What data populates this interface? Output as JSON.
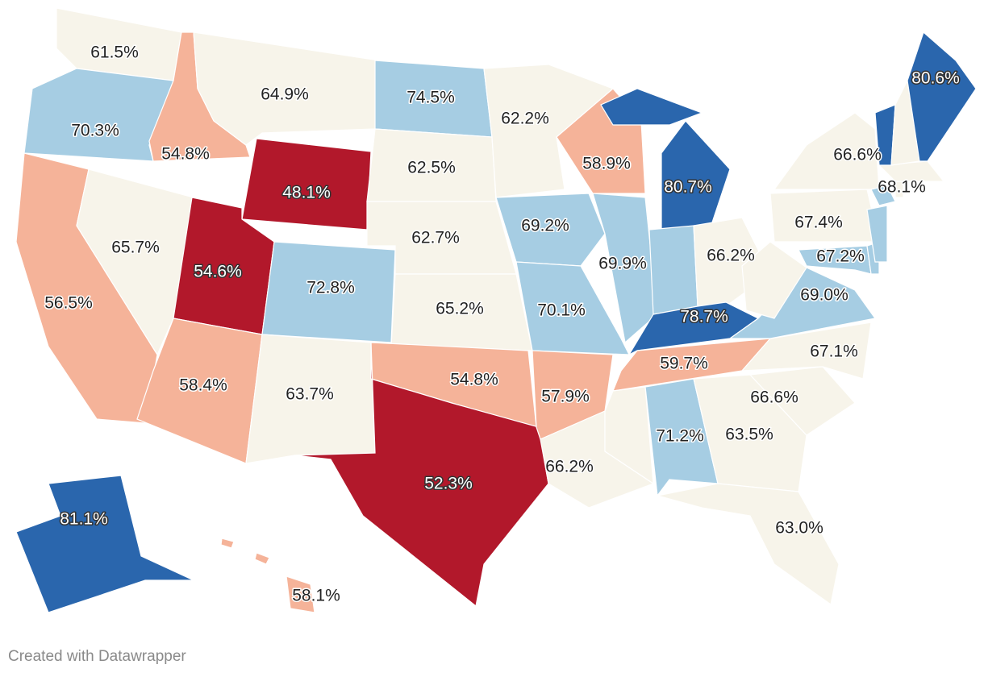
{
  "map_data": {
    "footer": "Created with Datawrapper",
    "regions": [
      {
        "value": 61.5,
        "label": "61.5%",
        "color": "#f7f4ea"
      },
      {
        "value": 70.3,
        "label": "70.3%",
        "color": "#a6cde3"
      },
      {
        "value": 56.5,
        "label": "56.5%",
        "color": "#f5b399"
      },
      {
        "value": 65.7,
        "label": "65.7%",
        "color": "#f7f4ea"
      },
      {
        "value": 54.8,
        "label": "54.8%",
        "color": "#f5b399"
      },
      {
        "value": 64.9,
        "label": "64.9%",
        "color": "#f7f4ea"
      },
      {
        "value": 48.1,
        "label": "48.1%",
        "color": "#b2182b"
      },
      {
        "value": 54.6,
        "label": "54.6%",
        "color": "#b2182b"
      },
      {
        "value": 58.4,
        "label": "58.4%",
        "color": "#f5b399"
      },
      {
        "value": 72.8,
        "label": "72.8%",
        "color": "#a6cde3"
      },
      {
        "value": 63.7,
        "label": "63.7%",
        "color": "#f7f4ea"
      },
      {
        "value": 74.5,
        "label": "74.5%",
        "color": "#a6cde3"
      },
      {
        "value": 62.5,
        "label": "62.5%",
        "color": "#f7f4ea"
      },
      {
        "value": 62.7,
        "label": "62.7%",
        "color": "#f7f4ea"
      },
      {
        "value": 65.2,
        "label": "65.2%",
        "color": "#f7f4ea"
      },
      {
        "value": 54.8,
        "label": "54.8%",
        "color": "#f5b399"
      },
      {
        "value": 52.3,
        "label": "52.3%",
        "color": "#b2182b"
      },
      {
        "value": 62.2,
        "label": "62.2%",
        "color": "#f7f4ea"
      },
      {
        "value": 69.2,
        "label": "69.2%",
        "color": "#a6cde3"
      },
      {
        "value": 70.1,
        "label": "70.1%",
        "color": "#a6cde3"
      },
      {
        "value": 57.9,
        "label": "57.9%",
        "color": "#f5b399"
      },
      {
        "value": 66.2,
        "label": "66.2%",
        "color": "#f7f4ea"
      },
      {
        "value": 58.9,
        "label": "58.9%",
        "color": "#f5b399"
      },
      {
        "value": 69.9,
        "label": "69.9%",
        "color": "#a6cde3"
      },
      {
        "value": 80.7,
        "label": "80.7%",
        "color": "#2a66ad"
      },
      {
        "value": null,
        "label": null,
        "color": "#a6cde3"
      },
      {
        "value": 66.2,
        "label": "66.2%",
        "color": "#f7f4ea"
      },
      {
        "value": 78.7,
        "label": "78.7%",
        "color": "#2a66ad"
      },
      {
        "value": 59.7,
        "label": "59.7%",
        "color": "#f5b399"
      },
      {
        "value": null,
        "label": null,
        "color": "#f7f4ea"
      },
      {
        "value": 71.2,
        "label": "71.2%",
        "color": "#a6cde3"
      },
      {
        "value": 63.5,
        "label": "63.5%",
        "color": "#f7f4ea"
      },
      {
        "value": 63.0,
        "label": "63.0%",
        "color": "#f7f4ea"
      },
      {
        "value": 66.6,
        "label": "66.6%",
        "color": "#f7f4ea"
      },
      {
        "value": 67.1,
        "label": "67.1%",
        "color": "#f7f4ea"
      },
      {
        "value": 69.0,
        "label": "69.0%",
        "color": "#a6cde3"
      },
      {
        "value": null,
        "label": null,
        "color": "#f7f4ea"
      },
      {
        "value": 67.4,
        "label": "67.4%",
        "color": "#f7f4ea"
      },
      {
        "value": 67.2,
        "label": "67.2%",
        "color": "#a6cde3"
      },
      {
        "value": null,
        "label": null,
        "color": "#a6cde3"
      },
      {
        "value": null,
        "label": null,
        "color": "#a6cde3"
      },
      {
        "value": 66.6,
        "label": "66.6%",
        "color": "#f7f4ea"
      },
      {
        "value": 68.1,
        "label": "68.1%",
        "color": "#a6cde3"
      },
      {
        "value": null,
        "label": null,
        "color": "#f7f4ea"
      },
      {
        "value": null,
        "label": null,
        "color": "#f7f4ea"
      },
      {
        "value": null,
        "label": null,
        "color": "#2a66ad"
      },
      {
        "value": null,
        "label": null,
        "color": "#f7f4ea"
      },
      {
        "value": 80.6,
        "label": "80.6%",
        "color": "#2a66ad"
      },
      {
        "value": 81.1,
        "label": "81.1%",
        "color": "#2a66ad"
      },
      {
        "value": 58.1,
        "label": "58.1%",
        "color": "#f5b399"
      }
    ]
  }
}
